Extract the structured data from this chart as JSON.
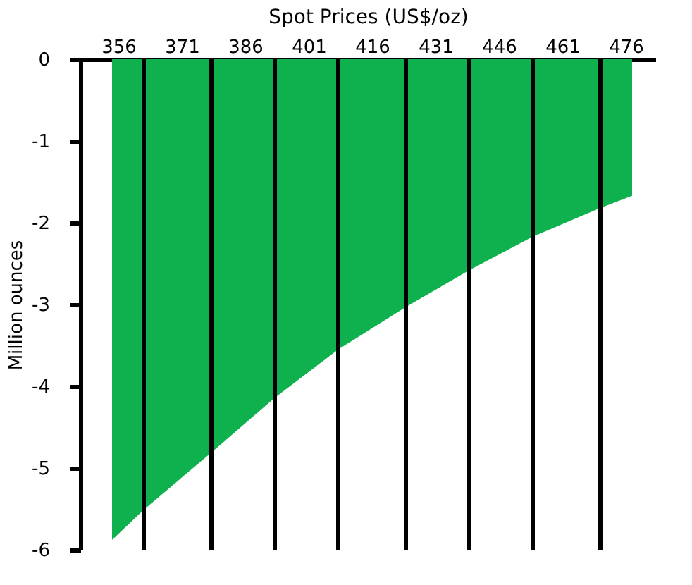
{
  "chart_data": {
    "type": "area",
    "xlabel": "Spot Prices (US$/oz)",
    "ylabel": "Million ounces",
    "x": [
      354.5,
      362,
      378,
      393,
      408,
      424,
      439,
      454,
      470,
      477.5
    ],
    "series": [
      {
        "color": "#0fb14e",
        "values": [
          -5.88,
          -5.51,
          -4.81,
          -4.14,
          -3.55,
          -3.03,
          -2.58,
          -2.17,
          -1.82,
          -1.67
        ]
      }
    ],
    "xlim": [
      347,
      483
    ],
    "xticks": [
      356,
      371,
      386,
      401,
      416,
      431,
      446,
      461,
      476
    ],
    "ylim": [
      -6,
      0
    ],
    "yticks": [
      0,
      -1,
      -2,
      -3,
      -4,
      -5,
      -6
    ],
    "ref_lines": [
      {
        "axis": "x",
        "value": 362,
        "color": "#000000"
      },
      {
        "axis": "x",
        "value": 378,
        "color": "#000000"
      },
      {
        "axis": "x",
        "value": 393,
        "color": "#000000"
      },
      {
        "axis": "x",
        "value": 408,
        "color": "#000000"
      },
      {
        "axis": "x",
        "value": 424,
        "color": "#000000"
      },
      {
        "axis": "x",
        "value": 439,
        "color": "#000000"
      },
      {
        "axis": "x",
        "value": 454,
        "color": "#000000"
      },
      {
        "axis": "x",
        "value": 470,
        "color": "#000000"
      }
    ]
  }
}
